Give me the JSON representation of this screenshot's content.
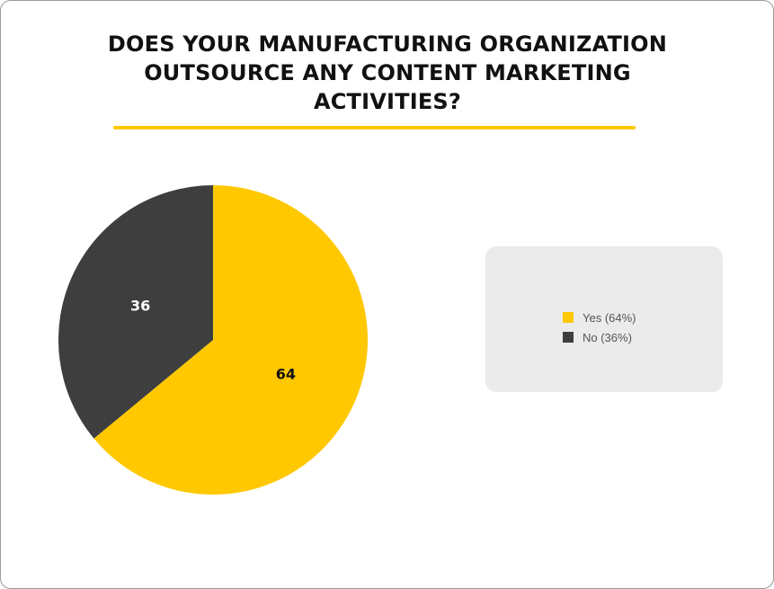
{
  "chart_data": {
    "type": "pie",
    "title": "DOES YOUR MANUFACTURING ORGANIZATION OUTSOURCE ANY CONTENT MARKETING ACTIVITIES?",
    "slices": [
      {
        "label": "Yes",
        "value": 64,
        "value_label": "64",
        "legend": "Yes (64%)",
        "color": "#ffc800",
        "text_color": "#111111"
      },
      {
        "label": "No",
        "value": 36,
        "value_label": "36",
        "legend": "No (36%)",
        "color": "#3e3e3e",
        "text_color": "#ffffff"
      }
    ],
    "legend_position": "right"
  }
}
